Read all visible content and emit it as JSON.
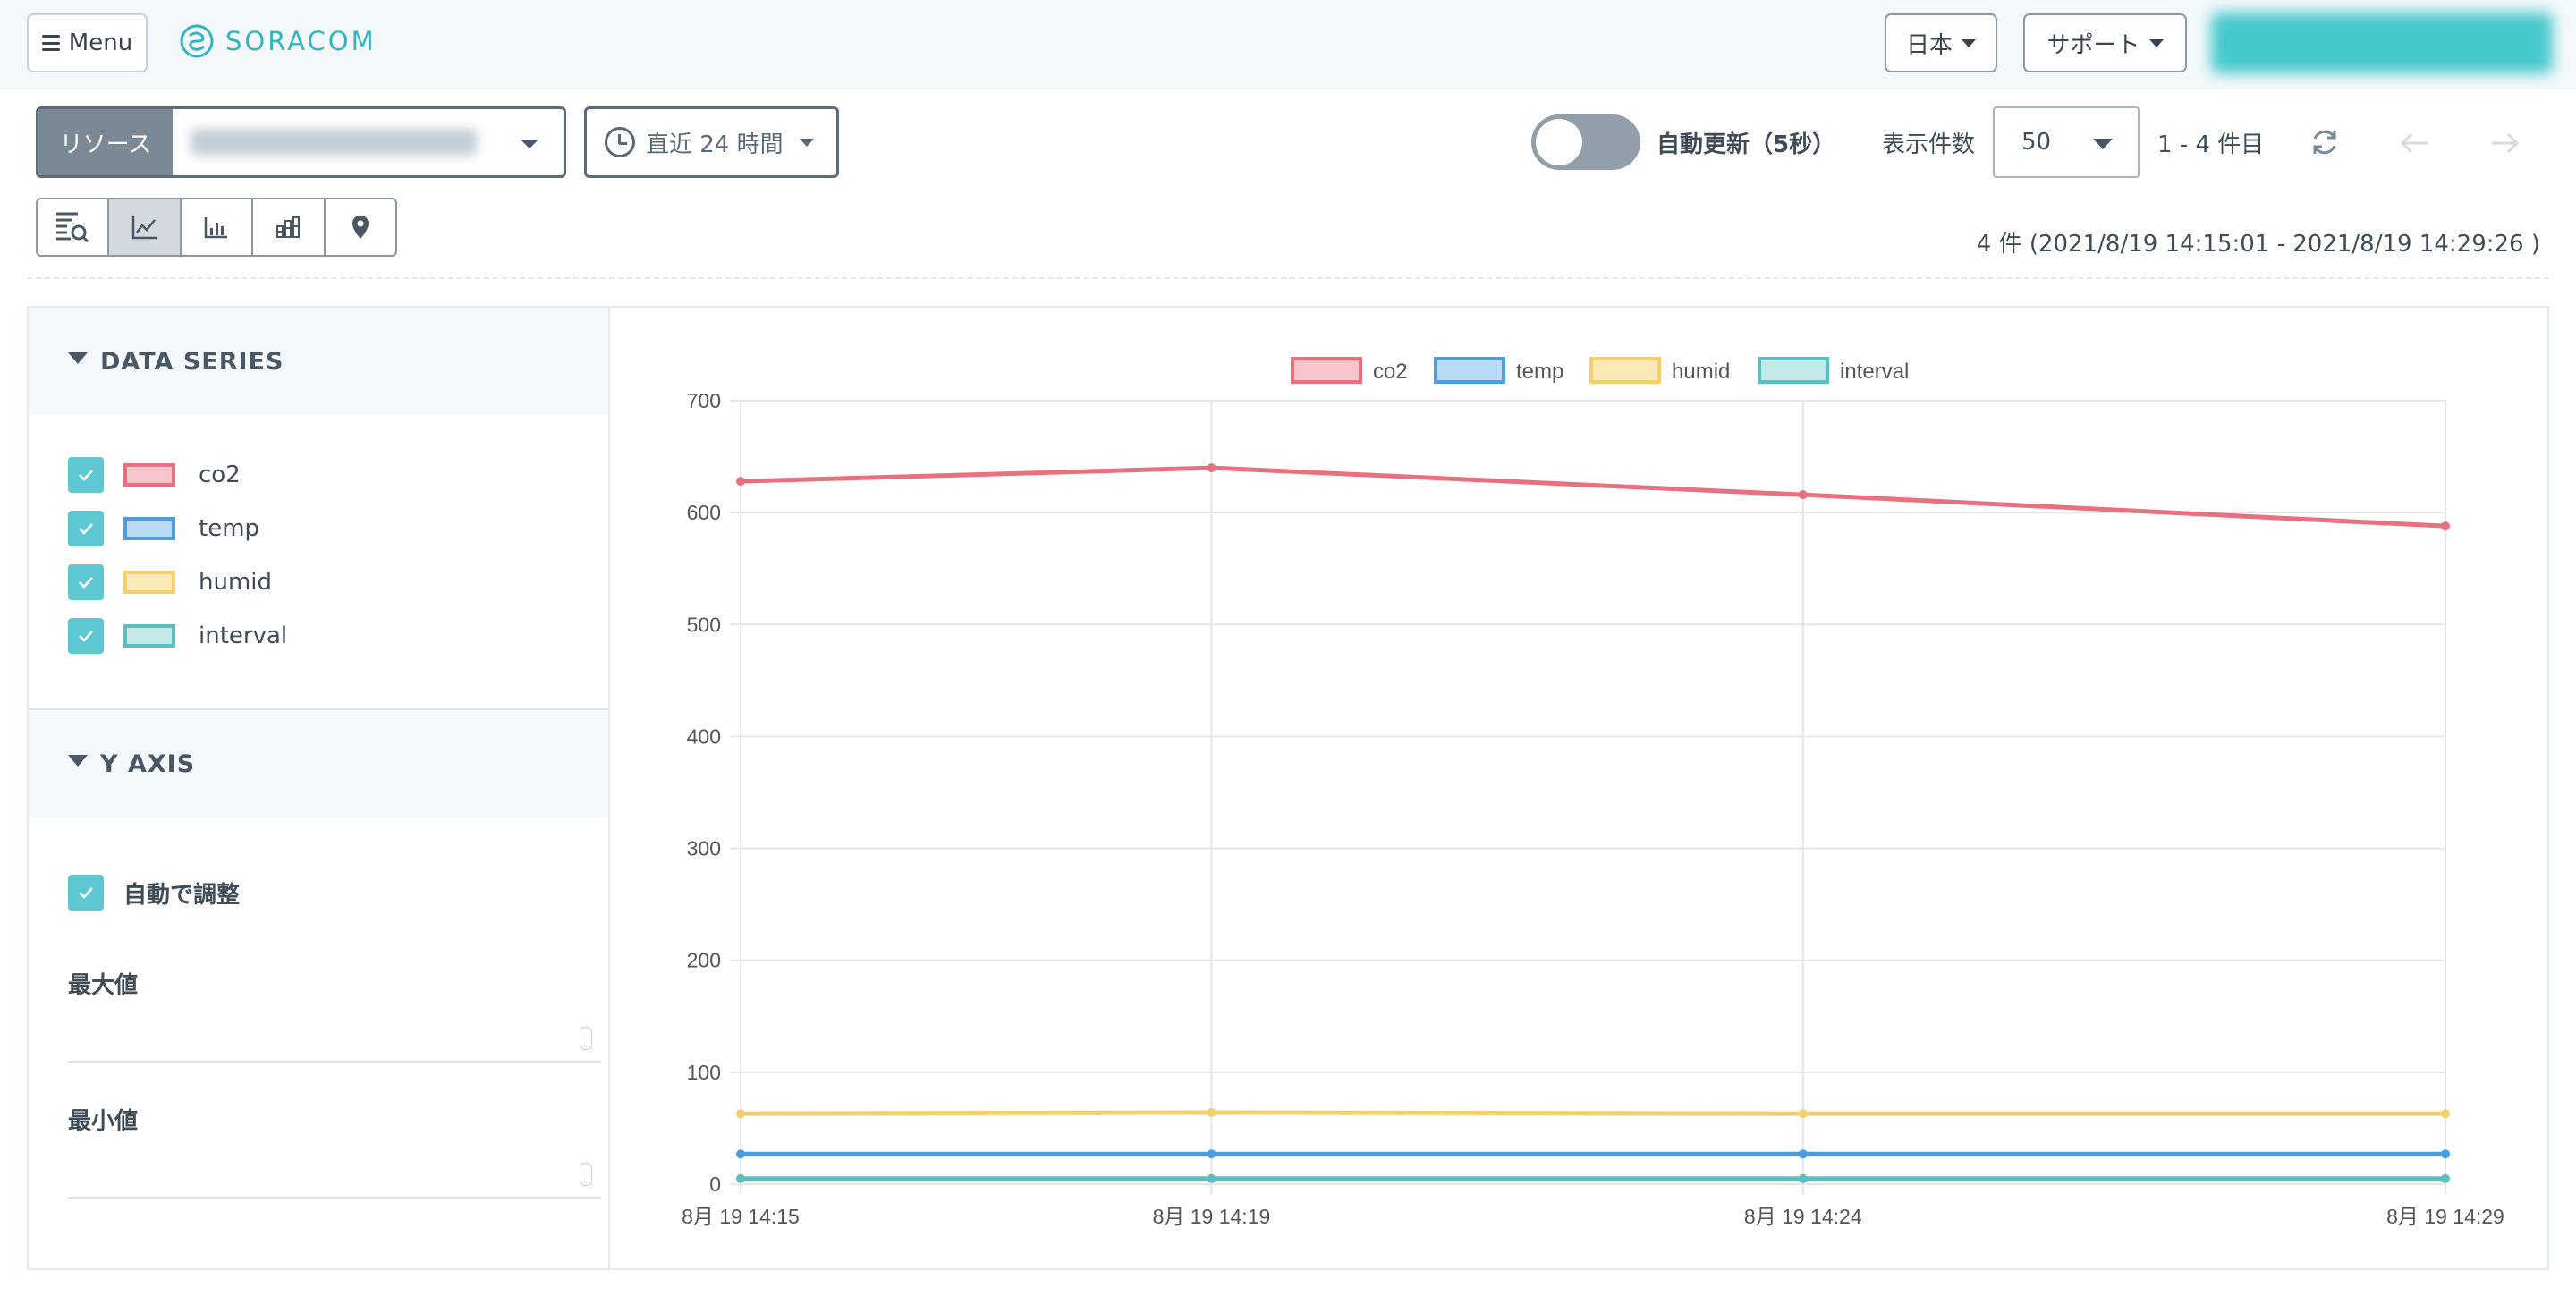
{
  "header": {
    "menu_label": "Menu",
    "logo_text": "SORACOM",
    "language_label": "日本",
    "support_label": "サポート"
  },
  "toolbar": {
    "resource_label": "リソース",
    "time_range_label": "直近 24 時間",
    "auto_refresh_label": "自動更新（5秒）",
    "auto_refresh_on": false,
    "page_size_label": "表示件数",
    "page_size_value": "50",
    "page_range_label": "1 - 4 件目",
    "records_info": "4 件 (2021/8/19 14:15:01  - 2021/8/19 14:29:26 )"
  },
  "view_modes": [
    "table",
    "line-chart",
    "bar-chart",
    "stacked-bar-chart",
    "map"
  ],
  "active_view": "line-chart",
  "sidebar": {
    "data_series_title": "DATA SERIES",
    "series": [
      {
        "label": "co2",
        "color": "#e8707f",
        "fill": "#f6c6cd",
        "checked": true
      },
      {
        "label": "temp",
        "color": "#4a9ee0",
        "fill": "#b9dbf5",
        "checked": true
      },
      {
        "label": "humid",
        "color": "#f5cf6a",
        "fill": "#fbe9b7",
        "checked": true
      },
      {
        "label": "interval",
        "color": "#5bbfbf",
        "fill": "#c3e8e8",
        "checked": true
      }
    ],
    "y_axis_title": "Y AXIS",
    "auto_adjust_label": "自動で調整",
    "max_label": "最大値",
    "min_label": "最小値",
    "max_value": "",
    "min_value": ""
  },
  "chart_data": {
    "type": "line",
    "x": [
      "8月 19 14:15",
      "8月 19 14:19",
      "8月 19 14:24",
      "8月 19 14:29"
    ],
    "x_minutes": [
      15.02,
      19.0,
      24.0,
      29.43
    ],
    "ylim": [
      0,
      700
    ],
    "yticks": [
      0,
      100,
      200,
      300,
      400,
      500,
      600,
      700
    ],
    "grid": true,
    "legend_position": "top",
    "series": [
      {
        "name": "co2",
        "values": [
          628,
          640,
          616,
          588
        ]
      },
      {
        "name": "temp",
        "values": [
          27,
          27,
          27,
          27
        ]
      },
      {
        "name": "humid",
        "values": [
          63,
          64,
          63,
          63
        ]
      },
      {
        "name": "interval",
        "values": [
          5,
          5,
          5,
          5
        ]
      }
    ]
  }
}
